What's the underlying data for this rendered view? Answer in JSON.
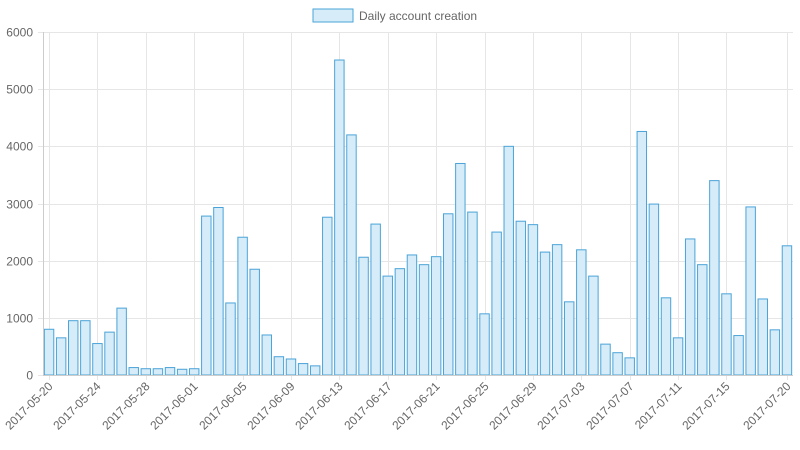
{
  "chart_data": {
    "type": "bar",
    "legend": {
      "position": "top"
    },
    "grid": true,
    "ylim": [
      0,
      6000
    ],
    "yticks": [
      0,
      1000,
      2000,
      3000,
      4000,
      5000,
      6000
    ],
    "colors": {
      "bar_fill": "#d6ecf9",
      "bar_stroke": "#4aa3d8",
      "grid": "#e6e6e6",
      "axis": "#cccccc"
    },
    "series": [
      {
        "name": "Daily account creation",
        "x": [
          "2017-05-20",
          "2017-05-21",
          "2017-05-22",
          "2017-05-23",
          "2017-05-24",
          "2017-05-25",
          "2017-05-26",
          "2017-05-27",
          "2017-05-28",
          "2017-05-29",
          "2017-05-30",
          "2017-05-31",
          "2017-06-01",
          "2017-06-02",
          "2017-06-03",
          "2017-06-04",
          "2017-06-05",
          "2017-06-06",
          "2017-06-07",
          "2017-06-08",
          "2017-06-09",
          "2017-06-10",
          "2017-06-11",
          "2017-06-12",
          "2017-06-13",
          "2017-06-14",
          "2017-06-15",
          "2017-06-16",
          "2017-06-17",
          "2017-06-18",
          "2017-06-19",
          "2017-06-20",
          "2017-06-21",
          "2017-06-22",
          "2017-06-23",
          "2017-06-24",
          "2017-06-25",
          "2017-06-26",
          "2017-06-27",
          "2017-06-28",
          "2017-06-29",
          "2017-06-30",
          "2017-07-01",
          "2017-07-02",
          "2017-07-03",
          "2017-07-04",
          "2017-07-05",
          "2017-07-06",
          "2017-07-07",
          "2017-07-08",
          "2017-07-09",
          "2017-07-10",
          "2017-07-11",
          "2017-07-12",
          "2017-07-13",
          "2017-07-14",
          "2017-07-15",
          "2017-07-16",
          "2017-07-17",
          "2017-07-18",
          "2017-07-19",
          "2017-07-20"
        ],
        "values": [
          800,
          650,
          950,
          950,
          550,
          750,
          1170,
          130,
          110,
          110,
          130,
          100,
          110,
          2780,
          2930,
          1260,
          2410,
          1850,
          700,
          320,
          280,
          200,
          160,
          2760,
          5510,
          4200,
          2060,
          2640,
          1730,
          1860,
          2100,
          1930,
          2070,
          2820,
          3700,
          2850,
          1070,
          2500,
          4000,
          2690,
          2630,
          2150,
          2280,
          1280,
          2190,
          1730,
          540,
          390,
          300,
          4260,
          2990,
          1350,
          650,
          2380,
          1930,
          3400,
          1420,
          690,
          2940,
          1330,
          790,
          2260
        ]
      }
    ],
    "xtick_labels": [
      "2017-05-20",
      "2017-05-24",
      "2017-05-28",
      "2017-06-01",
      "2017-06-05",
      "2017-06-09",
      "2017-06-13",
      "2017-06-17",
      "2017-06-21",
      "2017-06-25",
      "2017-06-29",
      "2017-07-03",
      "2017-07-07",
      "2017-07-11",
      "2017-07-15",
      "2017-07-20"
    ]
  }
}
